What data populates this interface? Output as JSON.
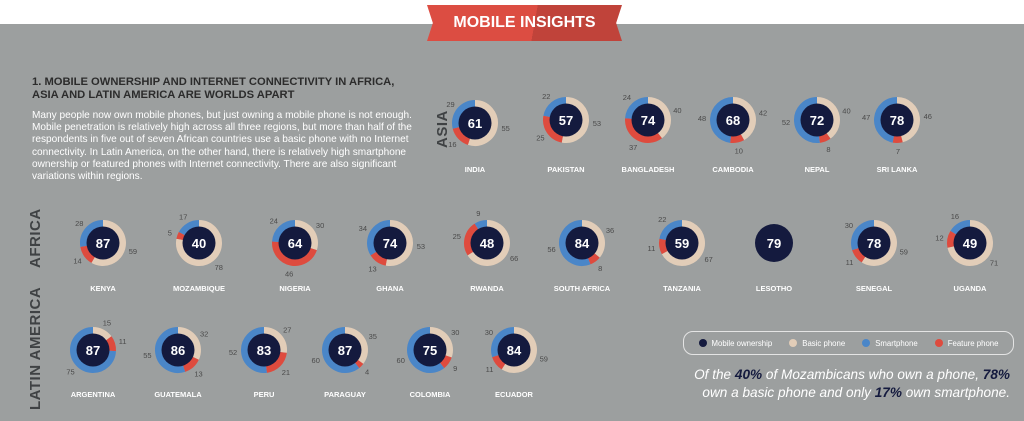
{
  "banner": {
    "title": "MOBILE INSIGHTS"
  },
  "heading": "1. MOBILE OWNERSHIP AND INTERNET CONNECTIVITY IN AFRICA, ASIA AND LATIN AMERICA ARE WORLDS APART",
  "paragraph": "Many people now own mobile phones, but just owning a mobile phone is not enough. Mobile penetration is relatively high across all three regions, but more than half of the respondents in five out of seven African countries use a basic phone with no Internet connectivity. In Latin America, on the other hand, there is relatively high smartphone ownership or featured phones with Internet connectivity. There are also significant variations within regions.",
  "regions": {
    "asia": "ASIA",
    "africa": "AFRICA",
    "latam": "LATIN AMERICA"
  },
  "colors": {
    "ownership": "#141a3e",
    "basic": "#e2cdb8",
    "smart": "#4a86c8",
    "feature": "#de4b3e"
  },
  "legend": [
    {
      "label": "Mobile ownership",
      "color": "#141a3e"
    },
    {
      "label": "Basic phone",
      "color": "#e2cdb8"
    },
    {
      "label": "Smartphone",
      "color": "#4a86c8"
    },
    {
      "label": "Feature phone",
      "color": "#de4b3e"
    }
  ],
  "caption": {
    "p1": "Of the ",
    "b1": "40%",
    "p2": " of Mozambicans who own a phone, ",
    "b2": "78%",
    "p3": " own a basic phone and only ",
    "b3": "17%",
    "p4": " own smartphone."
  },
  "chart_data": {
    "type": "donut",
    "series_names": [
      "Mobile ownership",
      "Basic phone",
      "Smartphone",
      "Feature phone"
    ],
    "countries": [
      {
        "region": "Asia",
        "name": "INDIA",
        "ownership": 61,
        "basic": 55,
        "smart": 29,
        "feature": 16
      },
      {
        "region": "Asia",
        "name": "PAKISTAN",
        "ownership": 57,
        "basic": 53,
        "smart": 22,
        "feature": 25
      },
      {
        "region": "Asia",
        "name": "BANGLADESH",
        "ownership": 74,
        "basic": 40,
        "smart": 24,
        "feature": 37
      },
      {
        "region": "Asia",
        "name": "CAMBODIA",
        "ownership": 68,
        "basic": 42,
        "smart": 48,
        "feature": 10
      },
      {
        "region": "Asia",
        "name": "NEPAL",
        "ownership": 72,
        "basic": 40,
        "smart": 52,
        "feature": 8
      },
      {
        "region": "Asia",
        "name": "SRI LANKA",
        "ownership": 78,
        "basic": 46,
        "smart": 47,
        "feature": 7
      },
      {
        "region": "Africa",
        "name": "KENYA",
        "ownership": 87,
        "basic": 59,
        "smart": 28,
        "feature": 14
      },
      {
        "region": "Africa",
        "name": "MOZAMBIQUE",
        "ownership": 40,
        "basic": 78,
        "smart": 17,
        "feature": 5
      },
      {
        "region": "Africa",
        "name": "NIGERIA",
        "ownership": 64,
        "basic": 30,
        "smart": 24,
        "feature": 46
      },
      {
        "region": "Africa",
        "name": "GHANA",
        "ownership": 74,
        "basic": 53,
        "smart": 34,
        "feature": 13
      },
      {
        "region": "Africa",
        "name": "RWANDA",
        "ownership": 48,
        "basic": 66,
        "smart": 9,
        "feature": 25
      },
      {
        "region": "Africa",
        "name": "SOUTH AFRICA",
        "ownership": 84,
        "basic": 36,
        "smart": 56,
        "feature": 8
      },
      {
        "region": "Africa",
        "name": "TANZANIA",
        "ownership": 59,
        "basic": 67,
        "smart": 22,
        "feature": 11
      },
      {
        "region": "Africa",
        "name": "LESOTHO",
        "ownership": 79,
        "basic": null,
        "smart": null,
        "feature": null
      },
      {
        "region": "Africa",
        "name": "SENEGAL",
        "ownership": 78,
        "basic": 59,
        "smart": 30,
        "feature": 11
      },
      {
        "region": "Africa",
        "name": "UGANDA",
        "ownership": 49,
        "basic": 71,
        "smart": 16,
        "feature": 12
      },
      {
        "region": "Latin America",
        "name": "ARGENTINA",
        "ownership": 87,
        "basic": 15,
        "smart": 75,
        "feature": 11
      },
      {
        "region": "Latin America",
        "name": "GUATEMALA",
        "ownership": 86,
        "basic": 32,
        "smart": 55,
        "feature": 13
      },
      {
        "region": "Latin America",
        "name": "PERU",
        "ownership": 83,
        "basic": 27,
        "smart": 52,
        "feature": 21
      },
      {
        "region": "Latin America",
        "name": "PARAGUAY",
        "ownership": 87,
        "basic": 35,
        "smart": 60,
        "feature": 4
      },
      {
        "region": "Latin America",
        "name": "COLOMBIA",
        "ownership": 75,
        "basic": 30,
        "smart": 60,
        "feature": 9
      },
      {
        "region": "Latin America",
        "name": "ECUADOR",
        "ownership": 84,
        "basic": 59,
        "smart": 30,
        "feature": 11
      }
    ]
  }
}
